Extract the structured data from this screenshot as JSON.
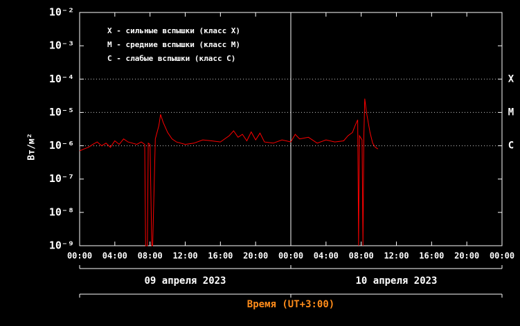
{
  "chart_data": {
    "type": "line",
    "y_label": "Вт/м²",
    "x_label": "Время (UT+3:00)",
    "legend": [
      "X - сильные вспышки (класс X)",
      "M - средние вспышки (класс M)",
      "C - слабые вспышки (класс C)"
    ],
    "y_scale": "log",
    "ylim": [
      1e-09,
      0.01
    ],
    "yticks": [
      {
        "value": 1e-09,
        "label": "10⁻⁹"
      },
      {
        "value": 1e-08,
        "label": "10⁻⁸"
      },
      {
        "value": 1e-07,
        "label": "10⁻⁷"
      },
      {
        "value": 1e-06,
        "label": "10⁻⁶"
      },
      {
        "value": 1e-05,
        "label": "10⁻⁵"
      },
      {
        "value": 0.0001,
        "label": "10⁻⁴"
      },
      {
        "value": 0.001,
        "label": "10⁻³"
      },
      {
        "value": 0.01,
        "label": "10⁻²"
      }
    ],
    "xlim": [
      0,
      48
    ],
    "xticks": [
      {
        "value": 0,
        "label": "00:00"
      },
      {
        "value": 4,
        "label": "04:00"
      },
      {
        "value": 8,
        "label": "08:00"
      },
      {
        "value": 12,
        "label": "12:00"
      },
      {
        "value": 16,
        "label": "16:00"
      },
      {
        "value": 20,
        "label": "20:00"
      },
      {
        "value": 24,
        "label": "00:00"
      },
      {
        "value": 28,
        "label": "04:00"
      },
      {
        "value": 32,
        "label": "08:00"
      },
      {
        "value": 36,
        "label": "12:00"
      },
      {
        "value": 40,
        "label": "16:00"
      },
      {
        "value": 44,
        "label": "20:00"
      },
      {
        "value": 48,
        "label": "00:00"
      }
    ],
    "days": [
      {
        "text": "09 апреля 2023",
        "x": 12
      },
      {
        "text": "10 апреля 2023",
        "x": 36
      }
    ],
    "class_levels": [
      {
        "label": "X",
        "value": 0.0001
      },
      {
        "label": "M",
        "value": 1e-05
      },
      {
        "label": "C",
        "value": 1e-06
      }
    ],
    "x": [
      0,
      0.5,
      1,
      1.5,
      2,
      2.5,
      3,
      3.5,
      4,
      4.5,
      5,
      5.5,
      6,
      6.5,
      7,
      7.4,
      7.5,
      7.7,
      7.8,
      8,
      8.2,
      8.3,
      8.6,
      9,
      9.2,
      9.5,
      10,
      10.5,
      11,
      12,
      13,
      14,
      15,
      16,
      17,
      17.5,
      18,
      18.5,
      19,
      19.5,
      20,
      20.5,
      21,
      22,
      23,
      24,
      24.5,
      25,
      26,
      27,
      28,
      29,
      30,
      30.5,
      31,
      31.3,
      31.6,
      31.7,
      31.8,
      32.1,
      32.2,
      32.3,
      32.4,
      32.6,
      33,
      33.3,
      33.6,
      33.9
    ],
    "series": [
      {
        "name": "flux",
        "color": "#ff0000",
        "values": [
          7e-07,
          8e-07,
          9e-07,
          1.1e-06,
          1.3e-06,
          1e-06,
          1.2e-06,
          9e-07,
          1.4e-06,
          1.1e-06,
          1.6e-06,
          1.3e-06,
          1.2e-06,
          1.1e-06,
          1.3e-06,
          1.1e-06,
          1e-09,
          1e-09,
          1.2e-06,
          1.1e-06,
          1e-09,
          1e-09,
          1.6e-06,
          4e-06,
          8.7e-06,
          5e-06,
          2.5e-06,
          1.6e-06,
          1.3e-06,
          1.1e-06,
          1.2e-06,
          1.5e-06,
          1.4e-06,
          1.3e-06,
          2e-06,
          2.8e-06,
          1.8e-06,
          2.2e-06,
          1.4e-06,
          2.6e-06,
          1.5e-06,
          2.4e-06,
          1.3e-06,
          1.2e-06,
          1.5e-06,
          1.3e-06,
          2.2e-06,
          1.6e-06,
          1.8e-06,
          1.2e-06,
          1.5e-06,
          1.3e-06,
          1.4e-06,
          2e-06,
          2.5e-06,
          4e-06,
          6e-06,
          1e-09,
          2e-06,
          1.5e-06,
          1e-09,
          2e-06,
          2.6e-05,
          1e-05,
          2.5e-06,
          1.2e-06,
          9e-07,
          8e-07
        ]
      }
    ]
  }
}
